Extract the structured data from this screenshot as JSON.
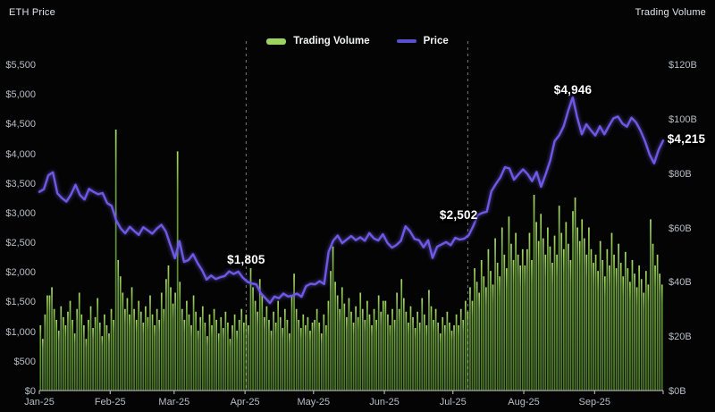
{
  "titles": {
    "left": "ETH Price",
    "right": "Trading Volume"
  },
  "legend": [
    {
      "label": "Trading Volume",
      "color": "#9ad45e",
      "type": "bar"
    },
    {
      "label": "Price",
      "color": "#5b4fd0",
      "type": "line"
    }
  ],
  "colors": {
    "background": "#040404",
    "price_line": "#6e59e6",
    "volume_bar_top": "#a6da66",
    "volume_bar_mid": "#6b9c3d",
    "volume_bar_bottom": "#4c762b",
    "axis_text": "#b7bdc5",
    "axis_line": "#c9c9c9",
    "annotation_text": "#ffffff",
    "dashed_line": "rgba(220,220,220,0.55)"
  },
  "chart_data": {
    "type": "mixed",
    "title": "",
    "x_axis": {
      "tick_labels": [
        "Jan-25",
        "Feb-25",
        "Mar-25",
        "Apr-25",
        "May-25",
        "Jun-25",
        "Jul-25",
        "Aug-25",
        "Sep-25"
      ],
      "month_days": [
        31,
        28,
        31,
        30,
        31,
        30,
        31,
        31,
        30
      ],
      "total_days": 273
    },
    "y_left": {
      "title": "ETH Price",
      "unit": "USD",
      "min": 0,
      "max": 5500,
      "step": 500,
      "tick_labels": [
        "$5,500",
        "$5,000",
        "$4,500",
        "$4,000",
        "$3,500",
        "$3,000",
        "$2,500",
        "$2,000",
        "$1,500",
        "$1,000",
        "$500",
        "$0"
      ]
    },
    "y_right": {
      "title": "Trading Volume",
      "unit": "USD billions",
      "min": 0,
      "max": 120,
      "step": 20,
      "tick_labels": [
        "$120B",
        "$100B",
        "$80B",
        "$60B",
        "$40B",
        "$20B",
        "$0B"
      ]
    },
    "grid": false,
    "legend_position": "top-center",
    "series": [
      {
        "name": "Trading Volume",
        "type": "bar",
        "axis": "right",
        "unit": "USD billions",
        "values": [
          24,
          19,
          28,
          35,
          35,
          38,
          30,
          26,
          22,
          31,
          27,
          24,
          29,
          33,
          26,
          21,
          30,
          36,
          28,
          24,
          19,
          26,
          31,
          23,
          27,
          34,
          25,
          20,
          28,
          24,
          21,
          30,
          26,
          96,
          48,
          42,
          36,
          30,
          34,
          28,
          38,
          30,
          26,
          33,
          29,
          25,
          31,
          27,
          35,
          28,
          24,
          30,
          26,
          36,
          30,
          41,
          46,
          38,
          32,
          36,
          88,
          40,
          30,
          26,
          33,
          28,
          24,
          35,
          29,
          22,
          27,
          31,
          25,
          20,
          28,
          24,
          30,
          26,
          21,
          27,
          23,
          29,
          25,
          19,
          24,
          28,
          22,
          26,
          30,
          25,
          28,
          24,
          45,
          38,
          33,
          29,
          41,
          35,
          27,
          31,
          26,
          22,
          29,
          25,
          33,
          27,
          23,
          30,
          26,
          21,
          35,
          43,
          30,
          26,
          23,
          28,
          24,
          27,
          22,
          25,
          26,
          30,
          25,
          21,
          28,
          24,
          33,
          44,
          53,
          40,
          35,
          30,
          38,
          32,
          27,
          34,
          29,
          25,
          31,
          27,
          36,
          30,
          26,
          33,
          28,
          24,
          30,
          26,
          35,
          29,
          33,
          33,
          28,
          24,
          30,
          26,
          36,
          30,
          41,
          34,
          29,
          25,
          31,
          27,
          23,
          29,
          25,
          34,
          28,
          24,
          37,
          31,
          26,
          30,
          25,
          21,
          27,
          24,
          29,
          25,
          22,
          24,
          28,
          24,
          30,
          26,
          33,
          29,
          38,
          33,
          45,
          40,
          36,
          48,
          42,
          38,
          52,
          44,
          39,
          56,
          47,
          42,
          60,
          50,
          45,
          64,
          54,
          48,
          58,
          50,
          46,
          52,
          46,
          52,
          58,
          48,
          72,
          62,
          55,
          65,
          56,
          50,
          60,
          53,
          47,
          57,
          50,
          68,
          58,
          52,
          62,
          54,
          48,
          66,
          71,
          60,
          55,
          63,
          56,
          50,
          60,
          52,
          47,
          50,
          44,
          55,
          48,
          42,
          52,
          46,
          58,
          50,
          45,
          54,
          47,
          42,
          51,
          45,
          40,
          48,
          43,
          38,
          46,
          41,
          36,
          44,
          39,
          63,
          54,
          46,
          50,
          43,
          39
        ]
      },
      {
        "name": "Price",
        "type": "line",
        "axis": "left",
        "unit": "USD",
        "values": [
          3350,
          3395,
          3630,
          3680,
          3325,
          3245,
          3185,
          3305,
          3470,
          3295,
          3220,
          3400,
          3350,
          3310,
          3330,
          3160,
          3115,
          2870,
          2735,
          2650,
          2760,
          2690,
          2625,
          2755,
          2700,
          2645,
          2730,
          2795,
          2680,
          2450,
          2230,
          2520,
          2170,
          2200,
          2300,
          2150,
          2030,
          1870,
          1940,
          1880,
          1910,
          1930,
          2010,
          1965,
          2005,
          1905,
          1835,
          1805,
          1790,
          1640,
          1560,
          1475,
          1585,
          1555,
          1635,
          1585,
          1600,
          1635,
          1580,
          1760,
          1800,
          1790,
          1845,
          1795,
          2340,
          2525,
          2615,
          2485,
          2545,
          2605,
          2535,
          2585,
          2525,
          2655,
          2565,
          2530,
          2635,
          2490,
          2410,
          2455,
          2525,
          2770,
          2685,
          2555,
          2535,
          2415,
          2535,
          2235,
          2425,
          2465,
          2505,
          2450,
          2575,
          2545,
          2560,
          2620,
          2775,
          2960,
          2995,
          3015,
          3360,
          3485,
          3595,
          3765,
          3745,
          3555,
          3645,
          3730,
          3650,
          3530,
          3685,
          3435,
          3645,
          3875,
          4205,
          4305,
          4455,
          4720,
          4946,
          4600,
          4320,
          4490,
          4390,
          4300,
          4455,
          4320,
          4460,
          4590,
          4620,
          4500,
          4450,
          4600,
          4520,
          4380,
          4200,
          3980,
          3830,
          4060,
          4215
        ]
      }
    ],
    "annotations": [
      {
        "label": "$1,805",
        "day": 90,
        "value": 1805,
        "placement": "above",
        "dy": -34
      },
      {
        "label": "$2,502",
        "day": 183,
        "value": 2502,
        "placement": "above",
        "dy": -38
      },
      {
        "label": "$4,946",
        "day": 233,
        "value": 4946,
        "placement": "above",
        "dy": -16
      },
      {
        "label": "$4,215",
        "day": 272,
        "value": 4215,
        "placement": "right",
        "dy": -9
      }
    ],
    "dashed_vertical_lines": [
      {
        "day": 90
      },
      {
        "day": 187
      }
    ]
  }
}
